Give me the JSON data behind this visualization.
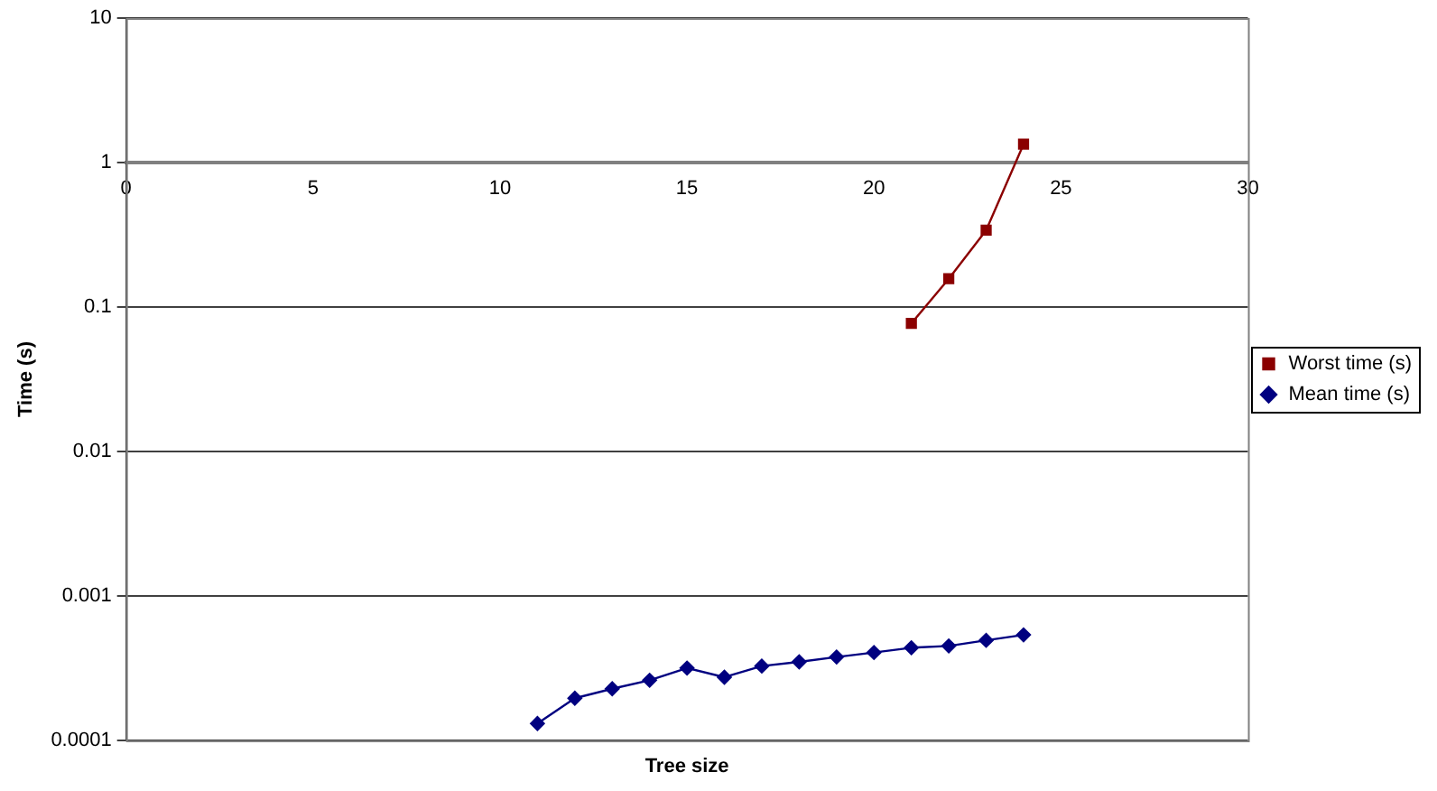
{
  "chart_data": {
    "type": "line",
    "xlabel": "Tree size",
    "ylabel": "Time (s)",
    "log": "y",
    "grid": "y",
    "legend": "right",
    "line_style": "solid",
    "xlim": [
      0,
      30
    ],
    "xticks": [
      0,
      5,
      10,
      15,
      20,
      25,
      30
    ],
    "ylim": [
      0.0001,
      10
    ],
    "yticks": [
      0.0001,
      0.001,
      0.01,
      0.1,
      1,
      10
    ],
    "series": [
      {
        "name": "Worst time (s)",
        "color": "#8b0000",
        "marker": "square",
        "x": [
          21,
          22,
          23,
          24
        ],
        "values": [
          0.077,
          0.157,
          0.34,
          1.34
        ]
      },
      {
        "name": "Mean time (s)",
        "color": "#000080",
        "marker": "diamond",
        "x": [
          11,
          12,
          13,
          14,
          15,
          16,
          17,
          18,
          19,
          20,
          21,
          22,
          23,
          24
        ],
        "values": [
          0.000131,
          0.000196,
          0.000228,
          0.000261,
          0.000317,
          0.000274,
          0.000327,
          0.00035,
          0.000378,
          0.000406,
          0.000438,
          0.000451,
          0.000493,
          0.000538
        ]
      }
    ]
  }
}
